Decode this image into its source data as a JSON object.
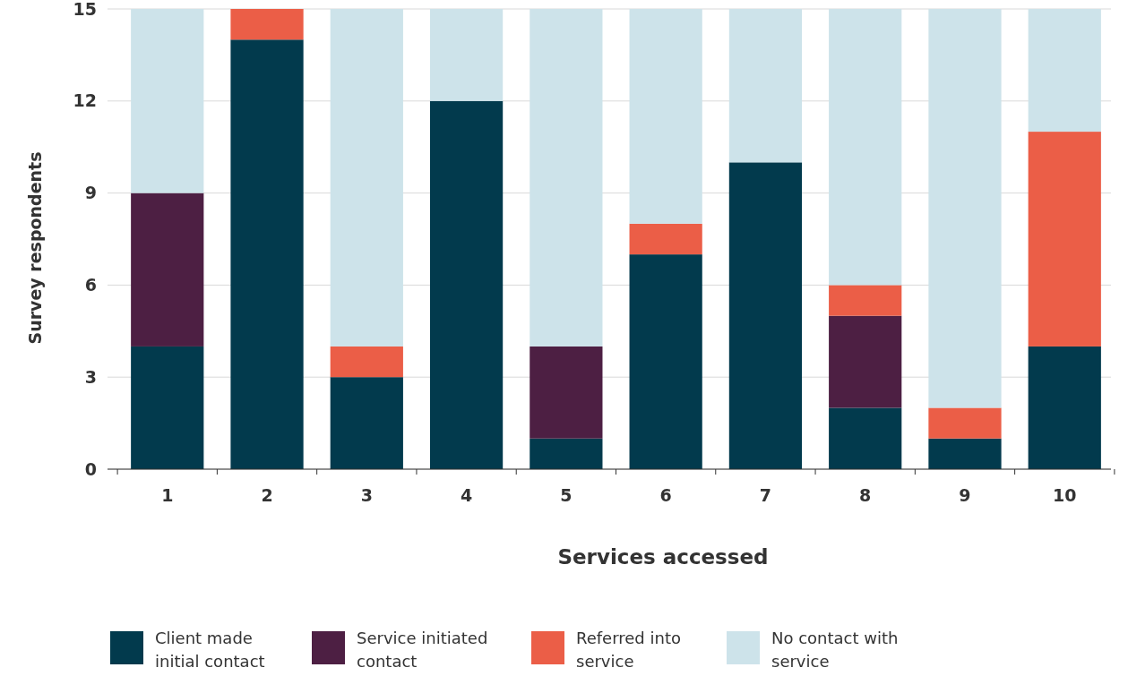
{
  "chart_data": {
    "type": "bar",
    "stacked": true,
    "xlabel": "Services accessed",
    "ylabel": "Survey respondents",
    "categories": [
      "1",
      "2",
      "3",
      "4",
      "5",
      "6",
      "7",
      "8",
      "9",
      "10"
    ],
    "series": [
      {
        "name": "Client made initial contact",
        "color": "#023a4d",
        "values": [
          4,
          14,
          3,
          12,
          1,
          7,
          10,
          2,
          1,
          4
        ]
      },
      {
        "name": "Service initiated contact",
        "color": "#4d1f43",
        "values": [
          5,
          0,
          0,
          0,
          3,
          0,
          0,
          3,
          0,
          0
        ]
      },
      {
        "name": "Referred into service",
        "color": "#eb5e47",
        "values": [
          0,
          1,
          1,
          0,
          0,
          1,
          0,
          1,
          1,
          7
        ]
      },
      {
        "name": "No contact with service",
        "color": "#cde3ea",
        "values": [
          6,
          0,
          11,
          3,
          11,
          7,
          5,
          9,
          13,
          4
        ]
      }
    ],
    "ylim": [
      0,
      15
    ],
    "yticks": [
      0,
      3,
      6,
      9,
      12,
      15
    ],
    "grid": "y",
    "legend": "bottom"
  }
}
